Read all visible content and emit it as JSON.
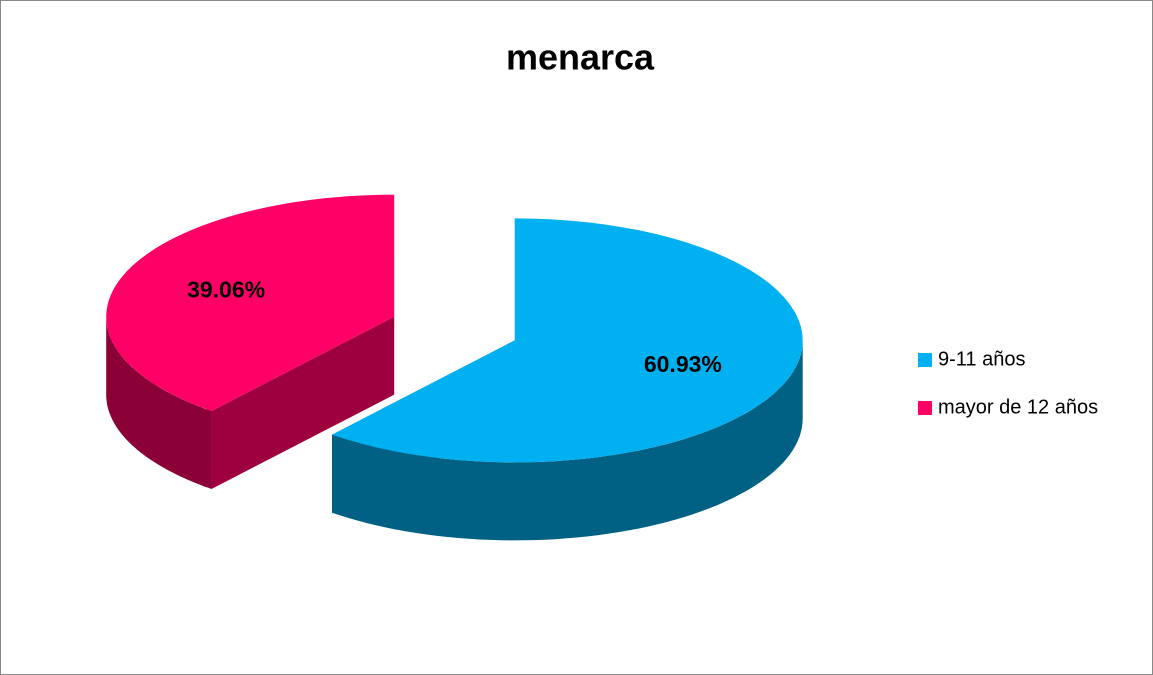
{
  "chart_data": {
    "type": "pie3d",
    "title": "menarca",
    "categories": [
      "9-11 años",
      "mayor de 12 años"
    ],
    "values": [
      60.93,
      39.06
    ],
    "value_labels": [
      "60.93%",
      "39.06%"
    ],
    "colors": [
      "#00b0f0",
      "#ff0066"
    ],
    "legend": "right"
  }
}
